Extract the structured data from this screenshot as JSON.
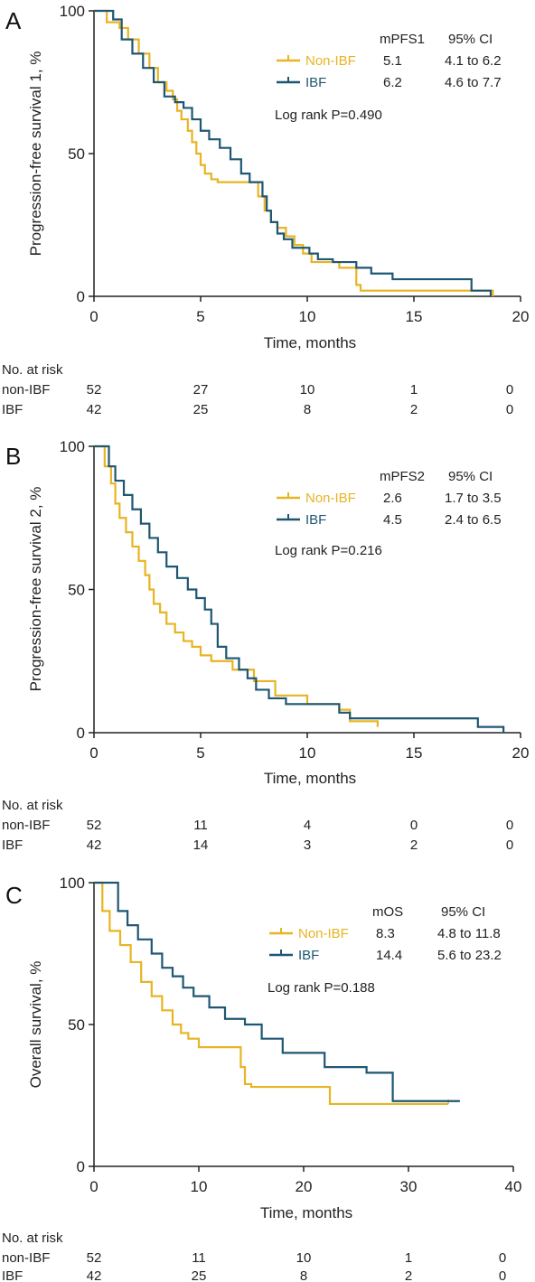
{
  "colors": {
    "non_ibf": "#e8b422",
    "ibf": "#1e5773",
    "axis": "#222222"
  },
  "risk_title": "No. at risk",
  "chart_data": [
    {
      "panel": "A",
      "type": "line",
      "subtype": "kaplan-meier",
      "xlabel": "Time, months",
      "ylabel": "Progression-free survival 1, %",
      "xlim": [
        0,
        20
      ],
      "ylim": [
        0,
        100
      ],
      "xticks": [
        0,
        5,
        10,
        15,
        20
      ],
      "yticks": [
        0,
        50,
        100
      ],
      "legend": {
        "placement": "top-right",
        "header": [
          "mPFS1",
          "95% CI"
        ],
        "rows": [
          {
            "name": "Non-IBF",
            "median": "5.1",
            "ci": "4.1 to 6.2"
          },
          {
            "name": "IBF",
            "median": "6.2",
            "ci": "4.6 to 7.7"
          }
        ]
      },
      "logrank": "Log rank P=0.490",
      "series": [
        {
          "name": "Non-IBF",
          "color": "#e8b422",
          "x": [
            0,
            0.6,
            1.2,
            1.6,
            2.1,
            2.6,
            3.0,
            3.4,
            3.7,
            3.9,
            4.1,
            4.4,
            4.6,
            4.8,
            5.0,
            5.2,
            5.5,
            5.8,
            7.7,
            8.0,
            8.3,
            8.6,
            9.0,
            9.4,
            9.8,
            10.2,
            11.5,
            12.3,
            12.5,
            14.0,
            18.5,
            18.7
          ],
          "y": [
            100,
            96,
            94,
            90,
            85,
            80,
            75,
            72,
            69,
            65,
            62,
            58,
            54,
            50,
            46,
            43,
            41,
            40,
            35,
            30,
            26,
            24,
            21,
            18,
            15,
            12,
            10,
            4,
            2,
            2,
            2,
            0
          ]
        },
        {
          "name": "IBF",
          "color": "#1e5773",
          "x": [
            0,
            0.9,
            1.3,
            1.8,
            2.3,
            2.8,
            3.3,
            3.8,
            4.2,
            4.6,
            5.0,
            5.4,
            5.9,
            6.4,
            6.9,
            7.3,
            7.9,
            8.1,
            8.3,
            8.6,
            8.9,
            9.3,
            10.1,
            10.5,
            11.2,
            12.3,
            13.0,
            14.0,
            17.7,
            18.6
          ],
          "y": [
            100,
            97,
            90,
            85,
            80,
            75,
            70,
            68,
            66,
            62,
            58,
            55,
            52,
            48,
            43,
            40,
            35,
            30,
            26,
            22,
            20,
            17,
            15,
            13,
            12,
            10,
            8,
            6,
            2,
            0
          ]
        }
      ],
      "risk_table": {
        "times": [
          0,
          5,
          10,
          15,
          20
        ],
        "rows": [
          {
            "label": "non-IBF",
            "values": [
              "52",
              "27",
              "10",
              "1",
              "0"
            ]
          },
          {
            "label": "IBF",
            "values": [
              "42",
              "25",
              "8",
              "2",
              "0"
            ]
          }
        ]
      }
    },
    {
      "panel": "B",
      "type": "line",
      "subtype": "kaplan-meier",
      "xlabel": "Time, months",
      "ylabel": "Progression-free survival 2, %",
      "xlim": [
        0,
        20
      ],
      "ylim": [
        0,
        100
      ],
      "xticks": [
        0,
        5,
        10,
        15,
        20
      ],
      "yticks": [
        0,
        50,
        100
      ],
      "legend": {
        "placement": "top-right",
        "header": [
          "mPFS2",
          "95% CI"
        ],
        "rows": [
          {
            "name": "Non-IBF",
            "median": "2.6",
            "ci": "1.7 to 3.5"
          },
          {
            "name": "IBF",
            "median": "4.5",
            "ci": "2.4 to 6.5"
          }
        ]
      },
      "logrank": "Log rank P=0.216",
      "series": [
        {
          "name": "Non-IBF",
          "color": "#e8b422",
          "x": [
            0,
            0.5,
            0.8,
            1.0,
            1.2,
            1.5,
            1.8,
            2.1,
            2.4,
            2.6,
            2.8,
            3.1,
            3.4,
            3.8,
            4.2,
            4.6,
            5.0,
            5.5,
            6.5,
            7.5,
            8.5,
            10.0,
            11.5,
            12.0,
            13.3
          ],
          "y": [
            100,
            93,
            87,
            80,
            75,
            70,
            65,
            60,
            55,
            50,
            45,
            42,
            38,
            35,
            32,
            30,
            27,
            25,
            22,
            18,
            13,
            10,
            8,
            4,
            2
          ]
        },
        {
          "name": "IBF",
          "color": "#1e5773",
          "x": [
            0,
            0.7,
            1.0,
            1.4,
            1.8,
            2.2,
            2.6,
            3.0,
            3.4,
            3.9,
            4.4,
            4.8,
            5.2,
            5.5,
            5.8,
            6.2,
            6.8,
            7.2,
            7.6,
            8.2,
            9.0,
            11.5,
            12.0,
            18.0,
            19.2
          ],
          "y": [
            100,
            93,
            88,
            83,
            78,
            73,
            68,
            63,
            58,
            54,
            50,
            47,
            43,
            38,
            30,
            26,
            22,
            19,
            15,
            12,
            10,
            7,
            5,
            2,
            0
          ]
        }
      ],
      "risk_table": {
        "times": [
          0,
          5,
          10,
          15,
          20
        ],
        "rows": [
          {
            "label": "non-IBF",
            "values": [
              "52",
              "11",
              "4",
              "0",
              "0"
            ]
          },
          {
            "label": "IBF",
            "values": [
              "42",
              "14",
              "3",
              "2",
              "0"
            ]
          }
        ]
      }
    },
    {
      "panel": "C",
      "type": "line",
      "subtype": "kaplan-meier",
      "xlabel": "Time, months",
      "ylabel": "Overall survival, %",
      "xlim": [
        0,
        40
      ],
      "ylim": [
        0,
        100
      ],
      "xticks": [
        0,
        10,
        20,
        30,
        40
      ],
      "yticks": [
        0,
        50,
        100
      ],
      "legend": {
        "placement": "top-right",
        "header": [
          "mOS",
          "95% CI"
        ],
        "rows": [
          {
            "name": "Non-IBF",
            "median": "8.3",
            "ci": "4.8 to 11.8"
          },
          {
            "name": "IBF",
            "median": "14.4",
            "ci": "5.6 to 23.2"
          }
        ]
      },
      "logrank": "Log rank P=0.188",
      "series": [
        {
          "name": "Non-IBF",
          "color": "#e8b422",
          "x": [
            0,
            0.8,
            1.5,
            2.5,
            3.5,
            4.5,
            5.5,
            6.5,
            7.5,
            8.3,
            9.0,
            10.0,
            14.0,
            14.4,
            15.0,
            22.5,
            33.8
          ],
          "y": [
            100,
            90,
            83,
            78,
            72,
            65,
            60,
            55,
            50,
            47,
            45,
            42,
            35,
            29,
            28,
            22,
            22
          ]
        },
        {
          "name": "IBF",
          "color": "#1e5773",
          "x": [
            0,
            2.3,
            3.2,
            4.2,
            5.5,
            6.5,
            7.5,
            8.5,
            9.5,
            11.0,
            12.5,
            14.4,
            16.0,
            18.0,
            22.0,
            26.0,
            28.5,
            34.9
          ],
          "y": [
            100,
            90,
            85,
            80,
            75,
            70,
            67,
            63,
            60,
            56,
            52,
            50,
            45,
            40,
            35,
            33,
            23,
            23
          ]
        }
      ],
      "risk_table": {
        "times": [
          0,
          10,
          20,
          30,
          40
        ],
        "rows": [
          {
            "label": "non-IBF",
            "values": [
              "52",
              "11",
              "10",
              "1",
              "0"
            ]
          },
          {
            "label": "IBF",
            "values": [
              "42",
              "25",
              "8",
              "2",
              "0"
            ]
          }
        ]
      }
    }
  ]
}
